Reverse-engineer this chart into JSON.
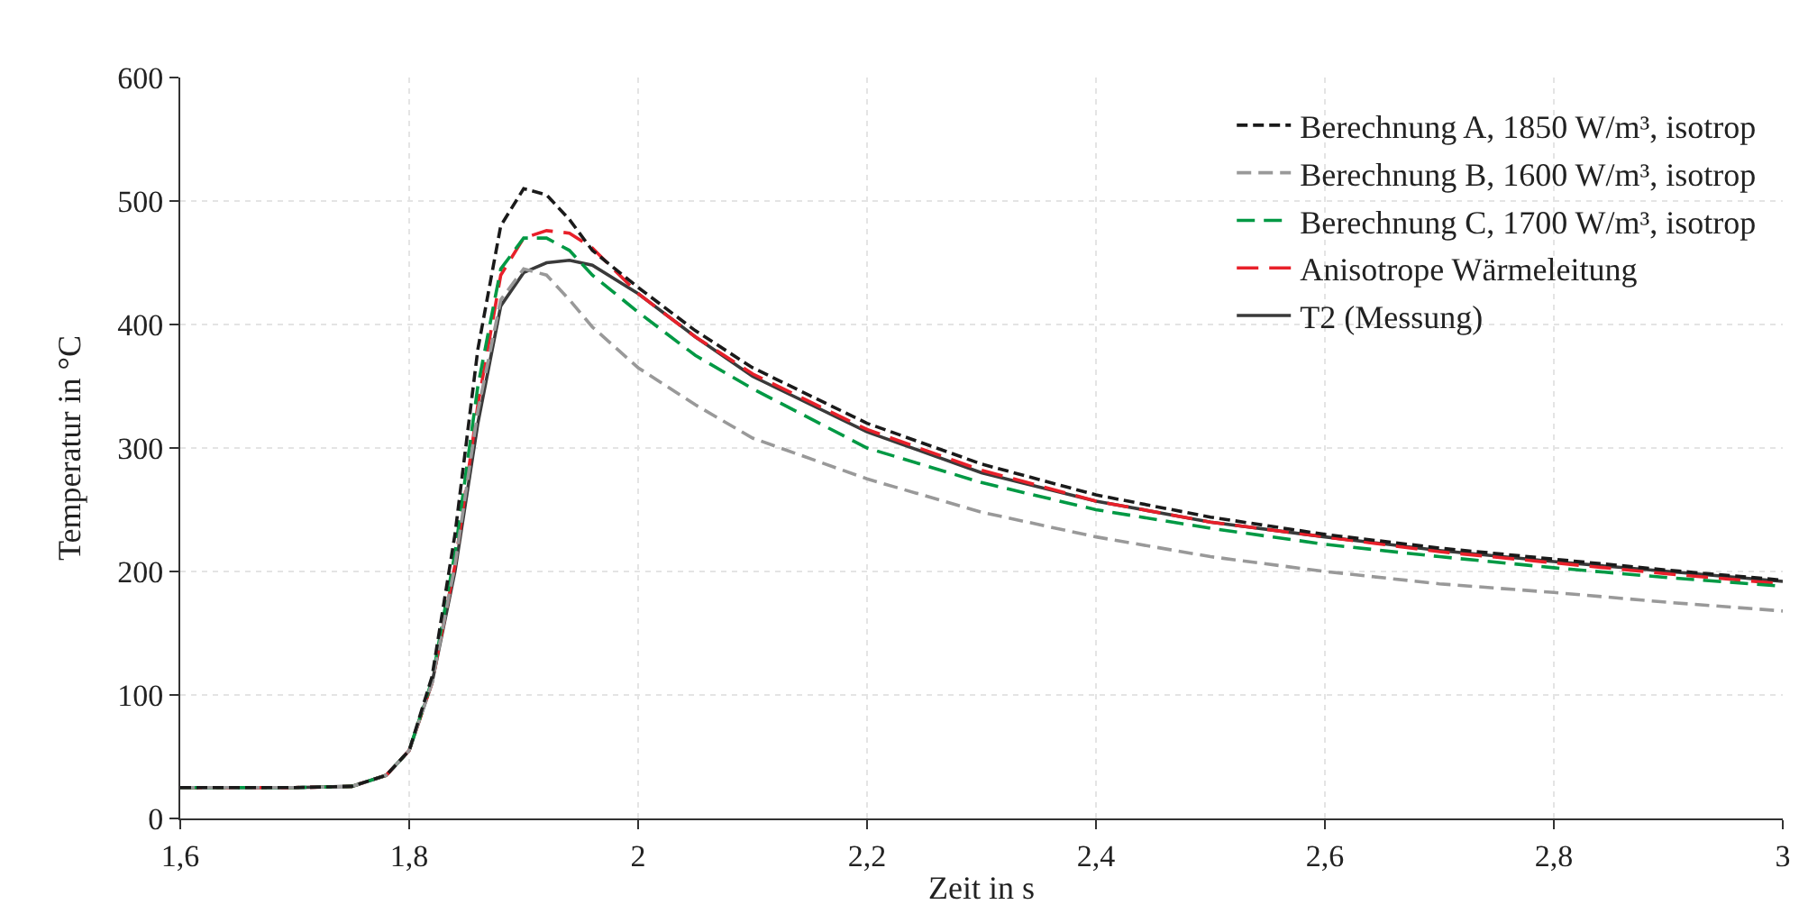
{
  "chart_data": {
    "type": "line",
    "xlabel": "Zeit in s",
    "ylabel": "Temperatur in °C",
    "x": [
      1.6,
      1.7,
      1.75,
      1.78,
      1.8,
      1.82,
      1.84,
      1.86,
      1.88,
      1.9,
      1.92,
      1.94,
      1.96,
      2.0,
      2.05,
      2.1,
      2.2,
      2.3,
      2.4,
      2.5,
      2.6,
      2.7,
      2.8,
      2.9,
      3.0
    ],
    "series": [
      {
        "name": "Berechnung A, 1850 W/m³, isotrop",
        "color": "#1a1a1a",
        "line_style": "dashed",
        "values": [
          25,
          25,
          26,
          35,
          55,
          115,
          230,
          380,
          480,
          510,
          505,
          485,
          460,
          430,
          395,
          365,
          320,
          287,
          262,
          244,
          230,
          219,
          210,
          201,
          193
        ]
      },
      {
        "name": "Berechnung B, 1600 W/m³, isotrop",
        "color": "#999999",
        "line_style": "dashed",
        "values": [
          25,
          25,
          26,
          35,
          55,
          110,
          205,
          330,
          420,
          445,
          440,
          420,
          398,
          365,
          335,
          308,
          275,
          248,
          228,
          212,
          200,
          190,
          183,
          175,
          168
        ]
      },
      {
        "name": "Berechnung C, 1700 W/m³, isotrop",
        "color": "#009944",
        "line_style": "dashed",
        "values": [
          25,
          25,
          26,
          35,
          55,
          112,
          215,
          350,
          445,
          470,
          470,
          460,
          440,
          410,
          375,
          348,
          300,
          272,
          250,
          235,
          222,
          212,
          203,
          195,
          188
        ]
      },
      {
        "name": "Anisotrope Wärmeleitung",
        "color": "#e8202a",
        "line_style": "dashed",
        "values": [
          25,
          25,
          26,
          35,
          55,
          110,
          205,
          335,
          440,
          470,
          476,
          474,
          462,
          425,
          390,
          360,
          315,
          282,
          257,
          240,
          228,
          216,
          207,
          198,
          190
        ]
      },
      {
        "name": "T2 (Messung)",
        "color": "#3a3a3a",
        "line_style": "solid",
        "values": [
          25,
          25,
          26,
          35,
          55,
          110,
          200,
          320,
          415,
          442,
          450,
          452,
          448,
          425,
          390,
          358,
          313,
          280,
          257,
          240,
          228,
          217,
          208,
          200,
          192
        ]
      }
    ],
    "xlim": [
      1.6,
      3
    ],
    "xticks": [
      {
        "value": 1.6,
        "label": "1,6"
      },
      {
        "value": 1.8,
        "label": "1,8"
      },
      2,
      {
        "value": 2.2,
        "label": "2,2"
      },
      {
        "value": 2.4,
        "label": "2,4"
      },
      {
        "value": 2.6,
        "label": "2,6"
      },
      {
        "value": 2.8,
        "label": "2,8"
      },
      3
    ],
    "ylim": [
      0,
      600
    ],
    "yticks": [
      0,
      100,
      200,
      300,
      400,
      500,
      600
    ],
    "grid": true,
    "legend": "top right",
    "marker": "none"
  }
}
